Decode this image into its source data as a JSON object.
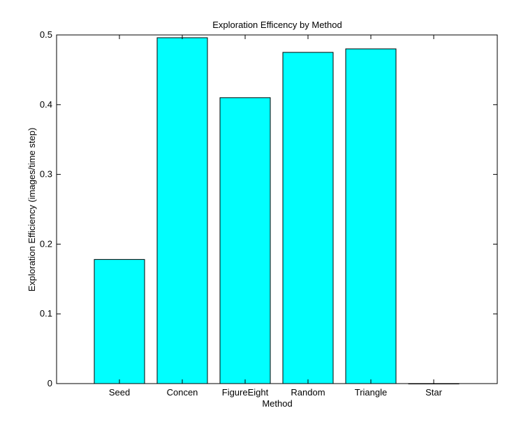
{
  "chart_data": {
    "type": "bar",
    "title": "Exploration Efficency by Method",
    "xlabel": "Method",
    "ylabel": "Exploration Efficiency (images/time step)",
    "categories": [
      "Seed",
      "Concen",
      "FigureEight",
      "Random",
      "Triangle",
      "Star"
    ],
    "values": [
      0.178,
      0.496,
      0.41,
      0.475,
      0.48,
      0.0
    ],
    "ylim": [
      0,
      0.5
    ],
    "yticks": [
      0,
      0.1,
      0.2,
      0.3,
      0.4,
      0.5
    ],
    "ytick_labels": [
      "0",
      "0.1",
      "0.2",
      "0.3",
      "0.4",
      "0.5"
    ],
    "bar_color": "#00ffff",
    "edge_color": "#000000",
    "grid": false,
    "legend": "none"
  }
}
